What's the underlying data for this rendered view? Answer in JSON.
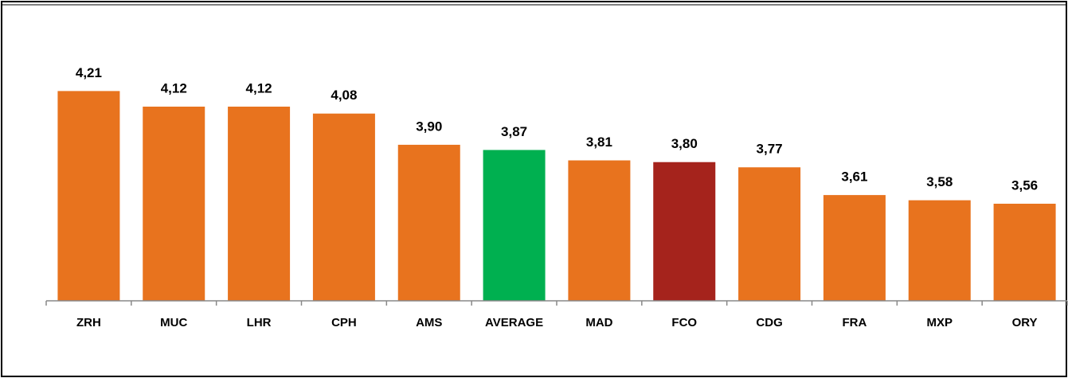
{
  "chart_data": {
    "type": "bar",
    "categories": [
      "ZRH",
      "MUC",
      "LHR",
      "CPH",
      "AMS",
      "AVERAGE",
      "MAD",
      "FCO",
      "CDG",
      "FRA",
      "MXP",
      "ORY"
    ],
    "values": [
      4.21,
      4.12,
      4.12,
      4.08,
      3.9,
      3.87,
      3.81,
      3.8,
      3.77,
      3.61,
      3.58,
      3.56
    ],
    "value_labels": [
      "4,21",
      "4,12",
      "4,12",
      "4,08",
      "3,90",
      "3,87",
      "3,81",
      "3,80",
      "3,77",
      "3,61",
      "3,58",
      "3,56"
    ],
    "colors": [
      "#e8731e",
      "#e8731e",
      "#e8731e",
      "#e8731e",
      "#e8731e",
      "#00b050",
      "#e8731e",
      "#a5231c",
      "#e8731e",
      "#e8731e",
      "#e8731e",
      "#e8731e"
    ],
    "ylim": [
      3,
      4.4
    ]
  }
}
